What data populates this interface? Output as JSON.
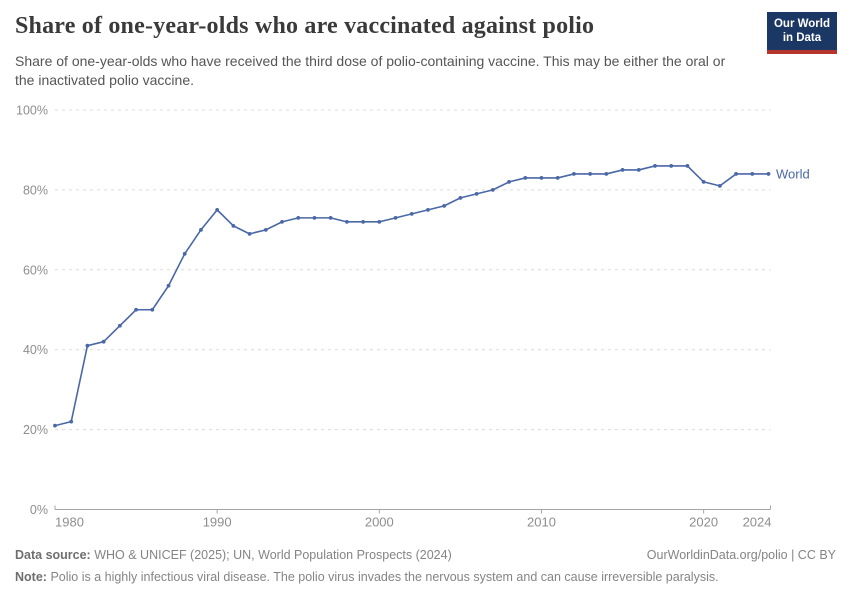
{
  "header": {
    "title": "Share of one-year-olds who are vaccinated against polio",
    "subtitle": "Share of one-year-olds who have received the third dose of polio-containing vaccine. This may be either the oral or the inactivated polio vaccine."
  },
  "logo": {
    "line1": "Our World",
    "line2": "in Data",
    "bg_color": "#1B3764",
    "accent_color": "#B5342C",
    "text_color": "#FFFFFF"
  },
  "chart_data": {
    "type": "line",
    "title": "Share of one-year-olds who are vaccinated against polio",
    "x": [
      1980,
      1981,
      1982,
      1983,
      1984,
      1985,
      1986,
      1987,
      1988,
      1989,
      1990,
      1991,
      1992,
      1993,
      1994,
      1995,
      1996,
      1997,
      1998,
      1999,
      2000,
      2001,
      2002,
      2003,
      2004,
      2005,
      2006,
      2007,
      2008,
      2009,
      2010,
      2011,
      2012,
      2013,
      2014,
      2015,
      2016,
      2017,
      2018,
      2019,
      2020,
      2021,
      2022,
      2023,
      2024
    ],
    "series": [
      {
        "name": "World",
        "values": [
          21,
          22,
          41,
          42,
          46,
          50,
          50,
          56,
          64,
          70,
          75,
          71,
          69,
          70,
          72,
          73,
          73,
          73,
          72,
          72,
          72,
          73,
          74,
          75,
          76,
          78,
          79,
          80,
          82,
          83,
          83,
          83,
          84,
          84,
          84,
          85,
          85,
          86,
          86,
          86,
          82,
          81,
          84,
          84,
          84
        ]
      }
    ],
    "xlabel": "",
    "ylabel": "",
    "xlim": [
      1980,
      2024
    ],
    "ylim": [
      0,
      100
    ],
    "xticks": [
      1980,
      1990,
      2000,
      2010,
      2020,
      2024
    ],
    "yticks": [
      0,
      20,
      40,
      60,
      80,
      100
    ],
    "ytick_suffix": "%",
    "grid": "horizontal-dashed",
    "legend": "line-end-label",
    "colors": {
      "line": "#4A68A5",
      "grid": "#DCDCDC",
      "axis": "#A5A5A5",
      "tick_text": "#8E8E8E"
    }
  },
  "footer": {
    "source_label": "Data source:",
    "source_text": "WHO & UNICEF (2025); UN, World Population Prospects (2024)",
    "link": "OurWorldinData.org/polio | CC BY",
    "note_label": "Note:",
    "note_text": "Polio is a highly infectious viral disease. The polio virus invades the nervous system and can cause irreversible paralysis."
  }
}
